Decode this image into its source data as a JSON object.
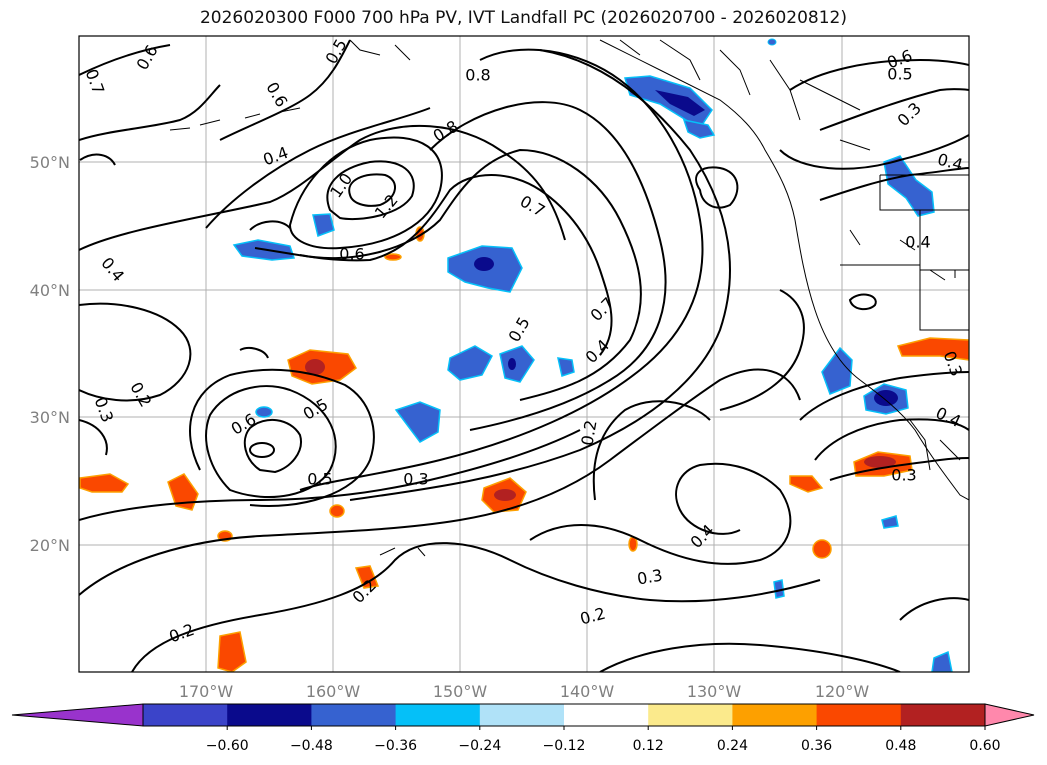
{
  "title": "2026020300 F000 700 hPa PV, IVT Landfall PC (2026020700 - 2026020812)",
  "lat_labels": [
    "50°N",
    "40°N",
    "30°N",
    "20°N"
  ],
  "lon_labels": [
    "170°W",
    "160°W",
    "150°W",
    "140°W",
    "130°W",
    "120°W"
  ],
  "colorbar": {
    "ticks": [
      "−0.60",
      "−0.48",
      "−0.36",
      "−0.24",
      "−0.12",
      "0.12",
      "0.24",
      "0.36",
      "0.48",
      "0.60"
    ],
    "colors": [
      "#9933cc",
      "#3b44c9",
      "#0a0a8c",
      "#3662d0",
      "#05c0f8",
      "#b0e2f8",
      "#ffffff",
      "#fbea8c",
      "#fda000",
      "#fa4800",
      "#b22121",
      "#ff88ac"
    ]
  },
  "contour_labels": [
    "0.6",
    "0.7",
    "0.5",
    "0.6",
    "0.8",
    "0.6",
    "0.5",
    "0.3",
    "0.4",
    "0.8",
    "0.4",
    "1.0",
    "1.2",
    "0.7",
    "0.6",
    "0.4",
    "0.4",
    "0.5",
    "0.7",
    "0.2",
    "0.4",
    "0.3",
    "0.5",
    "0.6",
    "0.4",
    "0.3",
    "0.2",
    "0.5",
    "0.3",
    "0.3",
    "0.2",
    "0.4",
    "0.3",
    "0.2",
    "0.2"
  ]
}
